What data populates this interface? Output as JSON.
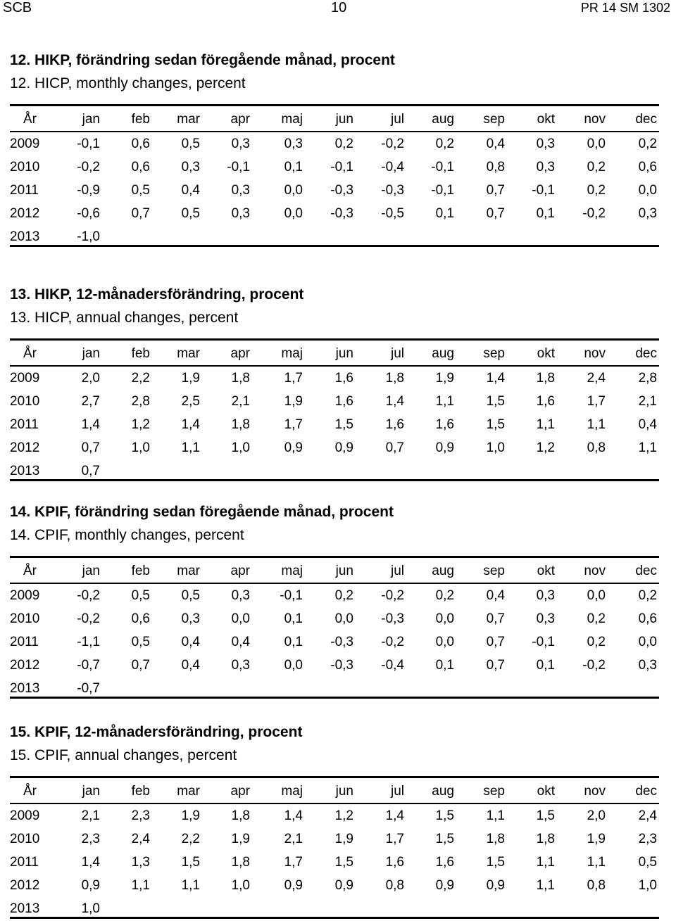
{
  "header": {
    "left": "SCB",
    "center": "10",
    "right": "PR 14 SM 1302"
  },
  "columns": [
    "År",
    "jan",
    "feb",
    "mar",
    "apr",
    "maj",
    "jun",
    "jul",
    "aug",
    "sep",
    "okt",
    "nov",
    "dec"
  ],
  "tables": [
    {
      "title_sv": "12. HIKP, förändring sedan föregående månad, procent",
      "title_en": "12. HICP, monthly changes, percent",
      "rows": [
        [
          "2009",
          "-0,1",
          "0,6",
          "0,5",
          "0,3",
          "0,3",
          "0,2",
          "-0,2",
          "0,2",
          "0,4",
          "0,3",
          "0,0",
          "0,2"
        ],
        [
          "2010",
          "-0,2",
          "0,6",
          "0,3",
          "-0,1",
          "0,1",
          "-0,1",
          "-0,4",
          "-0,1",
          "0,8",
          "0,3",
          "0,2",
          "0,6"
        ],
        [
          "2011",
          "-0,9",
          "0,5",
          "0,4",
          "0,3",
          "0,0",
          "-0,3",
          "-0,3",
          "-0,1",
          "0,7",
          "-0,1",
          "0,2",
          "0,0"
        ],
        [
          "2012",
          "-0,6",
          "0,7",
          "0,5",
          "0,3",
          "0,0",
          "-0,3",
          "-0,5",
          "0,1",
          "0,7",
          "0,1",
          "-0,2",
          "0,3"
        ],
        [
          "2013",
          "-1,0"
        ]
      ]
    },
    {
      "title_sv": "13. HIKP, 12-månadersförändring, procent",
      "title_en": "13. HICP, annual changes, percent",
      "rows": [
        [
          "2009",
          "2,0",
          "2,2",
          "1,9",
          "1,8",
          "1,7",
          "1,6",
          "1,8",
          "1,9",
          "1,4",
          "1,8",
          "2,4",
          "2,8"
        ],
        [
          "2010",
          "2,7",
          "2,8",
          "2,5",
          "2,1",
          "1,9",
          "1,6",
          "1,4",
          "1,1",
          "1,5",
          "1,6",
          "1,7",
          "2,1"
        ],
        [
          "2011",
          "1,4",
          "1,2",
          "1,4",
          "1,8",
          "1,7",
          "1,5",
          "1,6",
          "1,6",
          "1,5",
          "1,1",
          "1,1",
          "0,4"
        ],
        [
          "2012",
          "0,7",
          "1,0",
          "1,1",
          "1,0",
          "0,9",
          "0,9",
          "0,7",
          "0,9",
          "1,0",
          "1,2",
          "0,8",
          "1,1"
        ],
        [
          "2013",
          "0,7"
        ]
      ]
    },
    {
      "title_sv": "14. KPIF, förändring sedan föregående månad, procent",
      "title_en": "14. CPIF, monthly changes, percent",
      "rows": [
        [
          "2009",
          "-0,2",
          "0,5",
          "0,5",
          "0,3",
          "-0,1",
          "0,2",
          "-0,2",
          "0,2",
          "0,4",
          "0,3",
          "0,0",
          "0,2"
        ],
        [
          "2010",
          "-0,2",
          "0,6",
          "0,3",
          "0,0",
          "0,1",
          "0,0",
          "-0,3",
          "0,0",
          "0,7",
          "0,3",
          "0,2",
          "0,6"
        ],
        [
          "2011",
          "-1,1",
          "0,5",
          "0,4",
          "0,4",
          "0,1",
          "-0,3",
          "-0,2",
          "0,0",
          "0,7",
          "-0,1",
          "0,2",
          "0,0"
        ],
        [
          "2012",
          "-0,7",
          "0,7",
          "0,4",
          "0,3",
          "0,0",
          "-0,3",
          "-0,4",
          "0,1",
          "0,7",
          "0,1",
          "-0,2",
          "0,3"
        ],
        [
          "2013",
          "-0,7"
        ]
      ]
    },
    {
      "title_sv": "15. KPIF, 12-månadersförändring, procent",
      "title_en": "15. CPIF, annual changes, percent",
      "rows": [
        [
          "2009",
          "2,1",
          "2,3",
          "1,9",
          "1,8",
          "1,4",
          "1,2",
          "1,4",
          "1,5",
          "1,1",
          "1,5",
          "2,0",
          "2,4"
        ],
        [
          "2010",
          "2,3",
          "2,4",
          "2,2",
          "1,9",
          "2,1",
          "1,9",
          "1,7",
          "1,5",
          "1,8",
          "1,8",
          "1,9",
          "2,3"
        ],
        [
          "2011",
          "1,4",
          "1,3",
          "1,5",
          "1,8",
          "1,7",
          "1,5",
          "1,6",
          "1,6",
          "1,5",
          "1,1",
          "1,1",
          "0,5"
        ],
        [
          "2012",
          "0,9",
          "1,1",
          "1,1",
          "1,0",
          "0,9",
          "0,9",
          "0,8",
          "0,9",
          "0,9",
          "1,1",
          "0,8",
          "1,0"
        ],
        [
          "2013",
          "1,0"
        ]
      ]
    }
  ]
}
